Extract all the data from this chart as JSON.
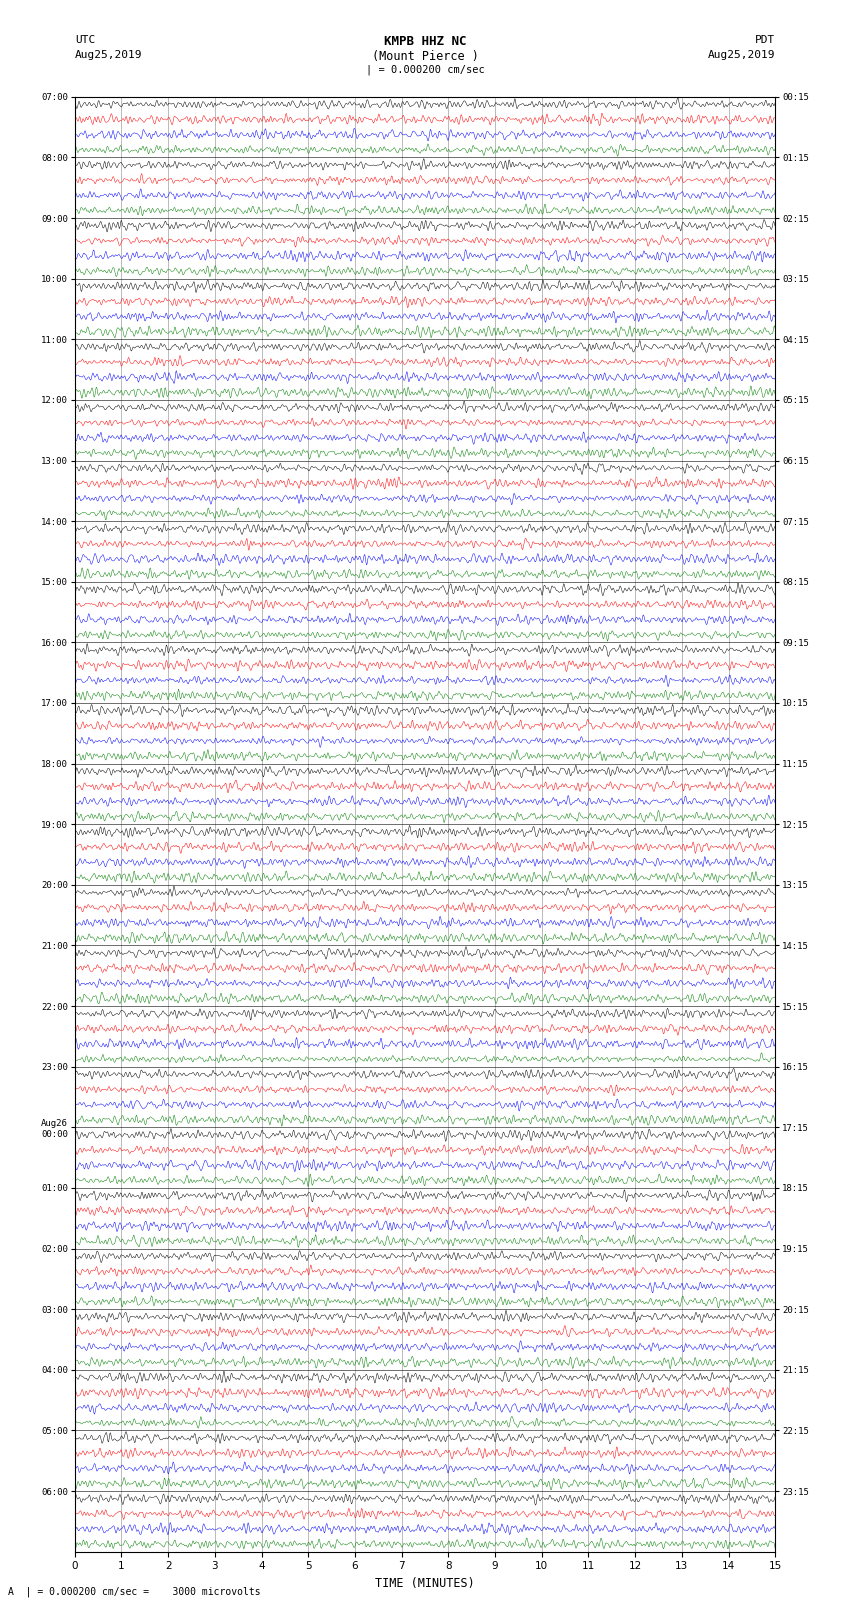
{
  "title_line1": "KMPB HHZ NC",
  "title_line2": "(Mount Pierce )",
  "scale_label": "| = 0.000200 cm/sec",
  "left_header1": "UTC",
  "left_header2": "Aug25,2019",
  "right_header1": "PDT",
  "right_header2": "Aug25,2019",
  "bottom_label": "A  | = 0.000200 cm/sec =    3000 microvolts",
  "xlabel": "TIME (MINUTES)",
  "utc_times": [
    "07:00",
    "08:00",
    "09:00",
    "10:00",
    "11:00",
    "12:00",
    "13:00",
    "14:00",
    "15:00",
    "16:00",
    "17:00",
    "18:00",
    "19:00",
    "20:00",
    "21:00",
    "22:00",
    "23:00",
    "Aug26\n00:00",
    "01:00",
    "02:00",
    "03:00",
    "04:00",
    "05:00",
    "06:00"
  ],
  "pdt_times": [
    "00:15",
    "01:15",
    "02:15",
    "03:15",
    "04:15",
    "05:15",
    "06:15",
    "07:15",
    "08:15",
    "09:15",
    "10:15",
    "11:15",
    "12:15",
    "13:15",
    "14:15",
    "15:15",
    "16:15",
    "17:15",
    "18:15",
    "19:15",
    "20:15",
    "21:15",
    "22:15",
    "23:15"
  ],
  "num_groups": 24,
  "traces_per_group": 4,
  "trace_colors": [
    "black",
    "red",
    "blue",
    "green"
  ],
  "background_color": "white",
  "fig_width": 8.5,
  "fig_height": 16.13,
  "xlim": [
    0,
    15
  ],
  "xticks": [
    0,
    1,
    2,
    3,
    4,
    5,
    6,
    7,
    8,
    9,
    10,
    11,
    12,
    13,
    14,
    15
  ],
  "vline_color": "#888888",
  "vline_lw": 0.4
}
